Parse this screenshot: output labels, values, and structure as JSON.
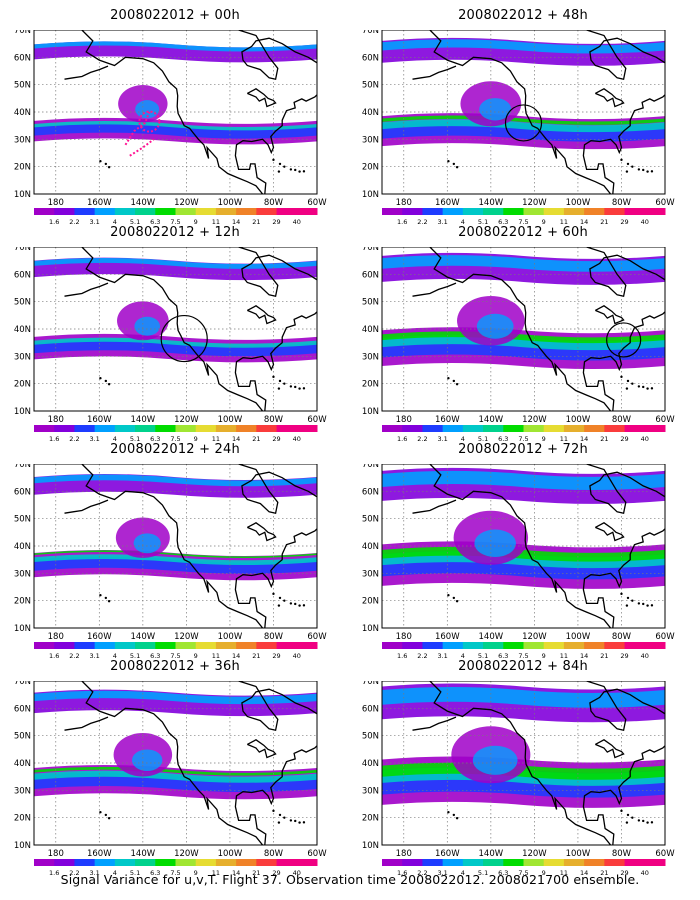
{
  "figure": {
    "caption": "Signal Variance for u,v,T. Flight 37. Observation time 2008022012. 2008021700 ensemble."
  },
  "map_axes": {
    "lat_labels": [
      "70N",
      "60N",
      "50N",
      "40N",
      "30N",
      "20N",
      "10N"
    ],
    "lon_labels": [
      "180",
      "160W",
      "140W",
      "120W",
      "100W",
      "80W",
      "60W"
    ]
  },
  "colorbar": {
    "labels": [
      "1.6",
      "2.2",
      "3.1",
      "4",
      "5.1",
      "6.3",
      "7.5",
      "9",
      "11",
      "14",
      "21",
      "29",
      "40"
    ],
    "colors": [
      "#a000c8",
      "#8200dc",
      "#1e3cff",
      "#00a0ff",
      "#00c8c8",
      "#00d28c",
      "#00dc00",
      "#a0e632",
      "#e6dc32",
      "#e6af2d",
      "#f08228",
      "#fa3c3c",
      "#f00082"
    ]
  },
  "panels": [
    {
      "id": "p00",
      "title": "2008022012 + 00h",
      "intensity": 0.25
    },
    {
      "id": "p48",
      "title": "2008022012 + 48h",
      "intensity": 0.5
    },
    {
      "id": "p12",
      "title": "2008022012 + 12h",
      "intensity": 0.3
    },
    {
      "id": "p60",
      "title": "2008022012 + 60h",
      "intensity": 0.65
    },
    {
      "id": "p24",
      "title": "2008022012 + 24h",
      "intensity": 0.35
    },
    {
      "id": "p72",
      "title": "2008022012 + 72h",
      "intensity": 0.8
    },
    {
      "id": "p36",
      "title": "2008022012 + 36h",
      "intensity": 0.45
    },
    {
      "id": "p84",
      "title": "2008022012 + 84h",
      "intensity": 0.9
    }
  ]
}
